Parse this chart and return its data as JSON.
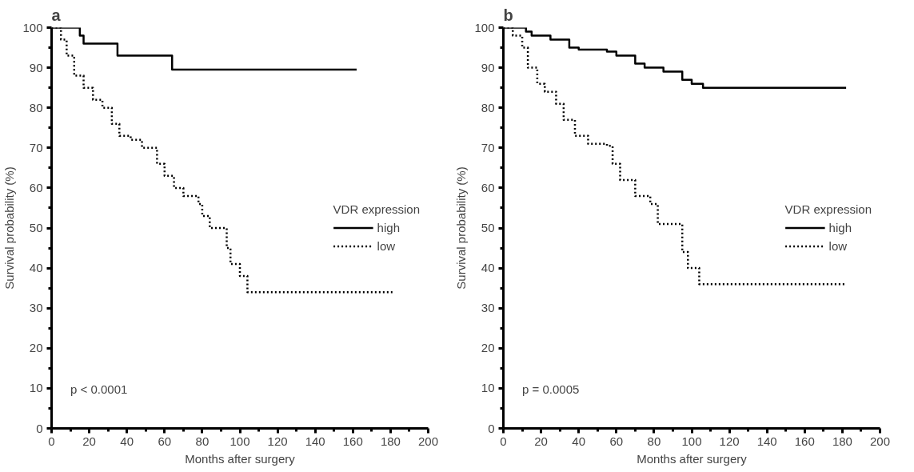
{
  "chart_data": [
    {
      "type": "step",
      "title": "a",
      "xlabel": "Months after surgery",
      "ylabel": "Survival probability (%)",
      "legend_title": "VDR expression",
      "legend": "right",
      "grid": false,
      "annotations": [
        "p < 0.0001"
      ],
      "xlim": [
        0,
        200
      ],
      "ylim": [
        0,
        100
      ],
      "xticks": [
        0,
        20,
        40,
        60,
        80,
        100,
        120,
        140,
        160,
        180,
        200
      ],
      "yticks": [
        0,
        10,
        20,
        30,
        40,
        50,
        60,
        70,
        80,
        90,
        100
      ],
      "series": [
        {
          "name": "high",
          "color": "#000000",
          "line_style": "solid",
          "x": [
            0,
            15,
            17,
            33,
            35,
            63,
            64,
            162
          ],
          "values": [
            100,
            98,
            96,
            96,
            93,
            93,
            89.5,
            89.5
          ]
        },
        {
          "name": "low",
          "color": "#000000",
          "line_style": "dotted",
          "x": [
            0,
            5,
            8,
            12,
            17,
            22,
            27,
            32,
            36,
            42,
            48,
            56,
            60,
            65,
            70,
            78,
            80,
            84,
            92,
            93,
            95,
            100,
            104,
            181
          ],
          "values": [
            100,
            97,
            93,
            88,
            85,
            82,
            80,
            76,
            73,
            72,
            70,
            66,
            63,
            60,
            58,
            56,
            53,
            50,
            50,
            45,
            41,
            38,
            34,
            34
          ]
        }
      ]
    },
    {
      "type": "step",
      "title": "b",
      "xlabel": "Months after surgery",
      "ylabel": "Survival probability (%)",
      "legend_title": "VDR expression",
      "legend": "right",
      "grid": false,
      "annotations": [
        "p = 0.0005"
      ],
      "xlim": [
        0,
        200
      ],
      "ylim": [
        0,
        100
      ],
      "xticks": [
        0,
        20,
        40,
        60,
        80,
        100,
        120,
        140,
        160,
        180,
        200
      ],
      "yticks": [
        0,
        10,
        20,
        30,
        40,
        50,
        60,
        70,
        80,
        90,
        100
      ],
      "series": [
        {
          "name": "high",
          "color": "#000000",
          "line_style": "solid",
          "x": [
            0,
            8,
            12,
            15,
            25,
            35,
            40,
            55,
            60,
            70,
            75,
            85,
            95,
            100,
            106,
            182
          ],
          "values": [
            100,
            100,
            99,
            98,
            97,
            95,
            94.5,
            94,
            93,
            91,
            90,
            89,
            87,
            86,
            85,
            85
          ]
        },
        {
          "name": "low",
          "color": "#000000",
          "line_style": "dotted",
          "x": [
            0,
            5,
            10,
            13,
            18,
            22,
            28,
            32,
            38,
            45,
            55,
            58,
            62,
            70,
            78,
            82,
            92,
            95,
            98,
            104,
            182
          ],
          "values": [
            100,
            98,
            95,
            90,
            86,
            84,
            81,
            77,
            73,
            71,
            70.5,
            66,
            62,
            58,
            56,
            51,
            51,
            44,
            40,
            36,
            36
          ]
        }
      ]
    }
  ]
}
